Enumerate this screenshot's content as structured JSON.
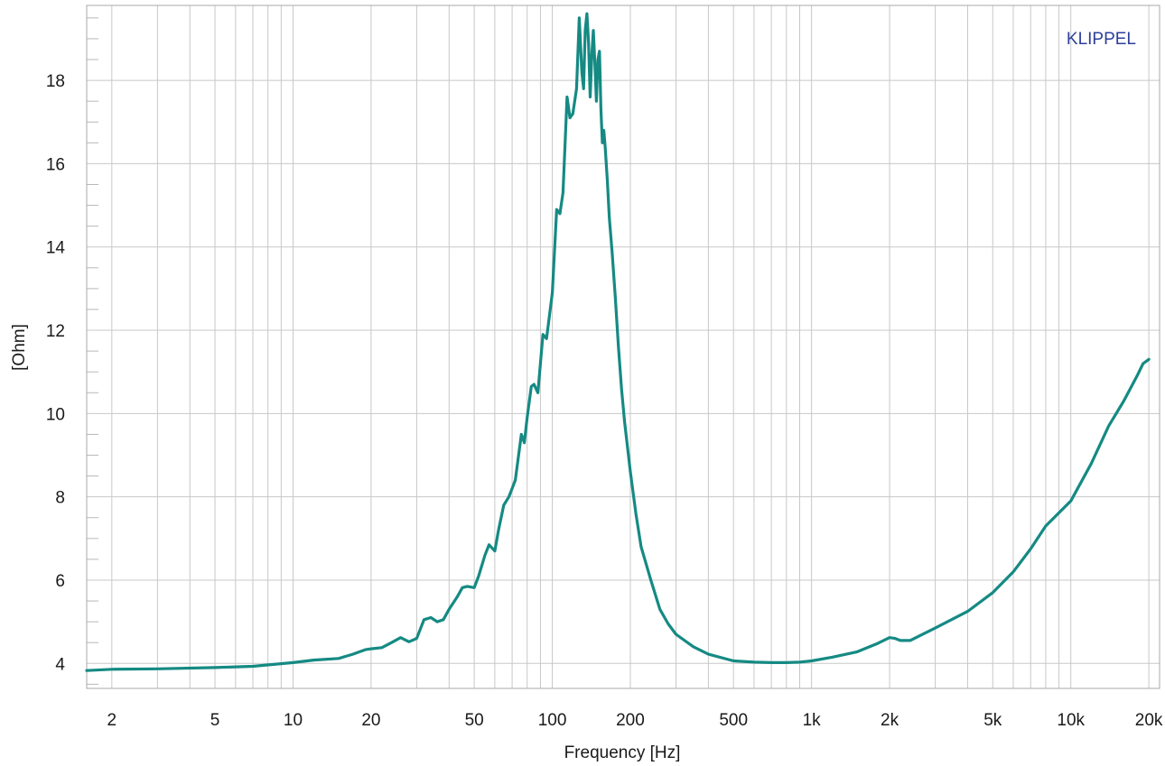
{
  "chart_data": {
    "type": "line",
    "title": "",
    "xlabel": "Frequency [Hz]",
    "ylabel": "[Ohm]",
    "x_scale": "log",
    "xlim": [
      1.6,
      22000
    ],
    "ylim": [
      3.4,
      19.8
    ],
    "grid": true,
    "watermark": "KLIPPEL",
    "colors": {
      "line": "#158a83",
      "grid": "#c8c8c8",
      "brand": "#2e3f9a",
      "border": "#aaaaaa"
    },
    "x_ticks": [
      {
        "value": 2,
        "label": "2"
      },
      {
        "value": 5,
        "label": "5"
      },
      {
        "value": 10,
        "label": "10"
      },
      {
        "value": 20,
        "label": "20"
      },
      {
        "value": 50,
        "label": "50"
      },
      {
        "value": 100,
        "label": "100"
      },
      {
        "value": 200,
        "label": "200"
      },
      {
        "value": 500,
        "label": "500"
      },
      {
        "value": 1000,
        "label": "1k"
      },
      {
        "value": 2000,
        "label": "2k"
      },
      {
        "value": 5000,
        "label": "5k"
      },
      {
        "value": 10000,
        "label": "10k"
      },
      {
        "value": 20000,
        "label": "20k"
      }
    ],
    "y_ticks": [
      {
        "value": 4,
        "label": "4"
      },
      {
        "value": 6,
        "label": "6"
      },
      {
        "value": 8,
        "label": "8"
      },
      {
        "value": 10,
        "label": "10"
      },
      {
        "value": 12,
        "label": "12"
      },
      {
        "value": 14,
        "label": "14"
      },
      {
        "value": 16,
        "label": "16"
      },
      {
        "value": 18,
        "label": "18"
      }
    ],
    "series": [
      {
        "x": [
          1.6,
          2,
          3,
          5,
          7,
          10,
          12,
          15,
          17,
          19,
          20,
          22,
          24,
          26,
          28,
          30,
          32,
          34,
          36,
          38,
          40,
          43,
          45,
          47,
          50,
          52,
          55,
          57,
          60,
          62,
          65,
          68,
          72,
          76,
          78,
          80,
          83,
          85,
          88,
          92,
          95,
          100,
          104,
          107,
          110,
          114,
          117,
          120,
          124,
          127,
          130,
          132,
          134,
          136,
          138,
          140,
          142,
          144,
          146,
          148,
          150,
          152,
          154,
          156,
          158,
          160,
          163,
          166,
          170,
          175,
          180,
          185,
          190,
          200,
          210,
          220,
          240,
          260,
          280,
          300,
          350,
          400,
          500,
          600,
          700,
          800,
          900,
          1000,
          1200,
          1500,
          1800,
          2000,
          2100,
          2200,
          2400,
          3000,
          4000,
          5000,
          6000,
          7000,
          8000,
          10000,
          12000,
          14000,
          16000,
          18000,
          19000,
          20000
        ],
        "y": [
          3.83,
          3.86,
          3.87,
          3.9,
          3.93,
          4.02,
          4.08,
          4.12,
          4.22,
          4.33,
          4.35,
          4.38,
          4.5,
          4.62,
          4.52,
          4.6,
          5.05,
          5.1,
          5.0,
          5.05,
          5.3,
          5.6,
          5.82,
          5.85,
          5.82,
          6.1,
          6.6,
          6.85,
          6.7,
          7.2,
          7.8,
          8.0,
          8.4,
          9.5,
          9.3,
          9.9,
          10.65,
          10.7,
          10.5,
          11.9,
          11.8,
          12.9,
          14.9,
          14.8,
          15.3,
          17.6,
          17.1,
          17.2,
          17.8,
          19.5,
          18.2,
          17.8,
          19.2,
          19.6,
          18.9,
          17.6,
          18.6,
          19.2,
          18.4,
          17.5,
          18.5,
          18.7,
          17.3,
          16.5,
          16.8,
          16.4,
          15.6,
          14.7,
          13.9,
          12.8,
          11.6,
          10.6,
          9.8,
          8.6,
          7.6,
          6.8,
          6.0,
          5.3,
          4.95,
          4.7,
          4.4,
          4.22,
          4.06,
          4.03,
          4.02,
          4.02,
          4.03,
          4.06,
          4.15,
          4.28,
          4.48,
          4.62,
          4.6,
          4.55,
          4.55,
          4.85,
          5.25,
          5.7,
          6.2,
          6.75,
          7.3,
          7.9,
          8.8,
          9.7,
          10.3,
          10.9,
          11.2,
          11.3
        ]
      }
    ]
  }
}
